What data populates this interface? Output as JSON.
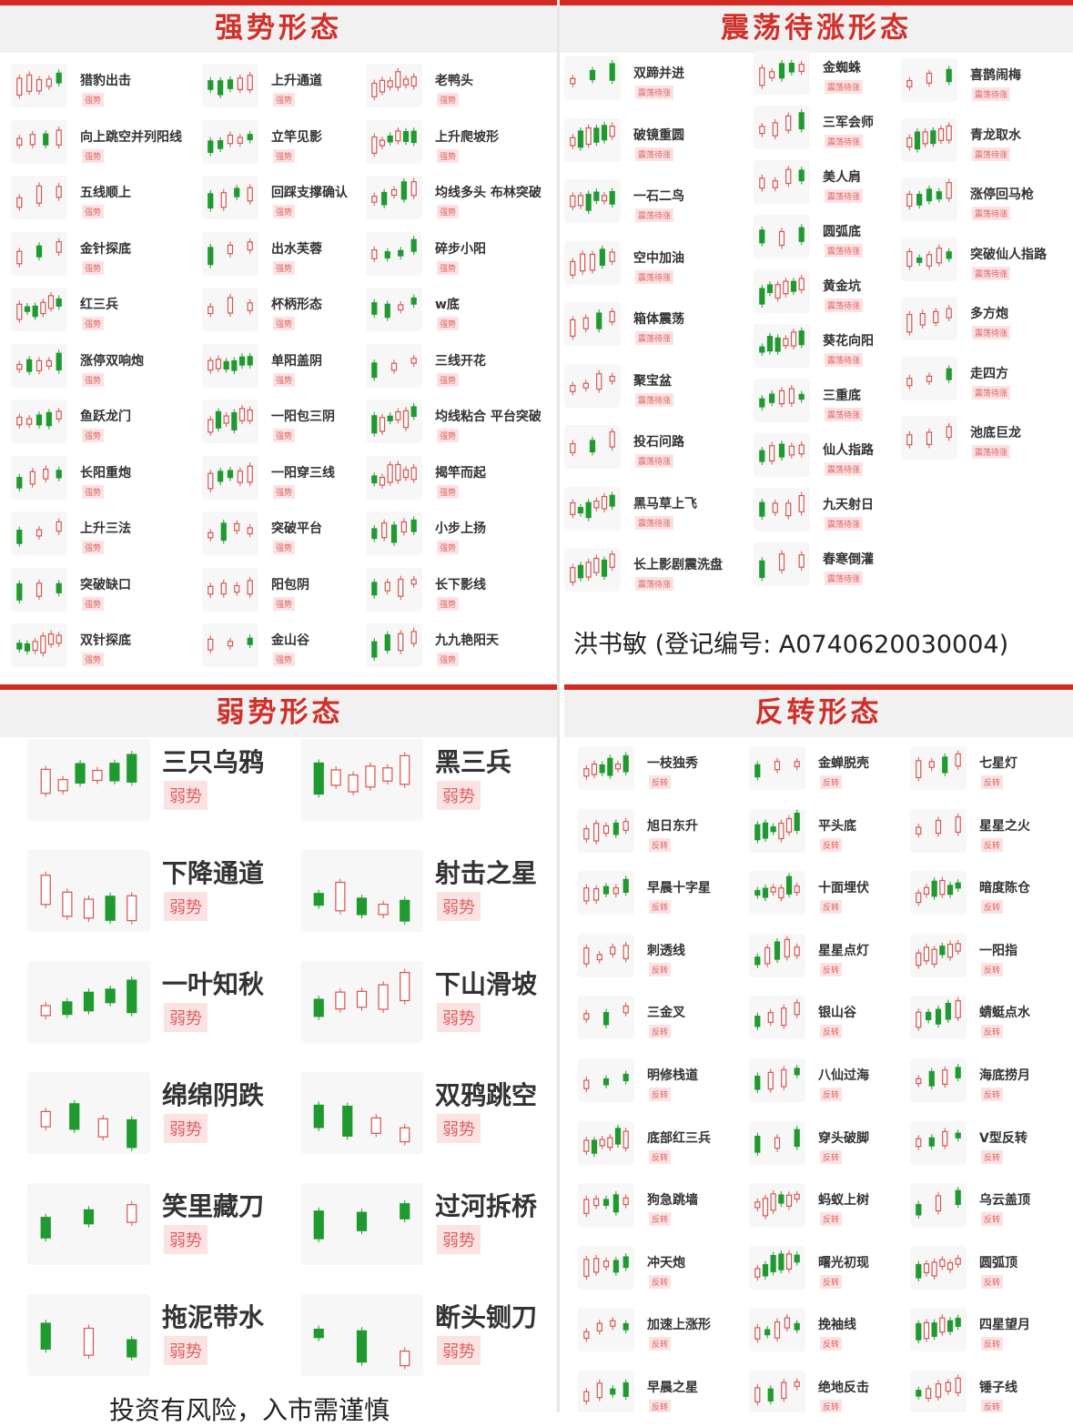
{
  "colors": {
    "accent": "#d42a24",
    "up": "#d9534f",
    "down": "#1e9a2e",
    "tag_bg": "#fbe3e3"
  },
  "strong": {
    "title": "强势形态",
    "tag": "强势",
    "columns": [
      [
        "猎豹出击",
        "向上跳空并列阳线",
        "五线顺上",
        "金针探底",
        "红三兵",
        "涨停双响炮",
        "鱼跃龙门",
        "长阳重炮",
        "上升三法",
        "突破缺口",
        "双针探底"
      ],
      [
        "上升通道",
        "立竿见影",
        "回踩支撑确认",
        "出水芙蓉",
        "杯柄形态",
        "单阳盖阴",
        "一阳包三阴",
        "一阳穿三线",
        "突破平台",
        "阳包阴",
        "金山谷"
      ],
      [
        "老鸭头",
        "上升爬坡形",
        "均线多头 布林突破",
        "碎步小阳",
        "w底",
        "三线开花",
        "均线粘合 平台突破",
        "揭竿而起",
        "小步上扬",
        "长下影线",
        "九九艳阳天"
      ]
    ]
  },
  "consolidation": {
    "title": "震荡待涨形态",
    "tag": "震荡待涨",
    "columns": [
      [
        "双蹄并进",
        "破镜重圆",
        "一石二鸟",
        "空中加油",
        "箱体震荡",
        "聚宝盆",
        "投石问路",
        "黑马草上飞",
        "长上影剧震洗盘"
      ],
      [
        "金蜘蛛",
        "三军会师",
        "美人肩",
        "圆弧底",
        "黄金坑",
        "葵花向阳",
        "三重底",
        "仙人指路",
        "九天射日",
        "春寒倒灌"
      ],
      [
        "喜鹊闹梅",
        "青龙取水",
        "涨停回马枪",
        "突破仙人指路",
        "多方炮",
        "走四方",
        "池底巨龙"
      ]
    ],
    "credit": "洪书敏 (登记编号: A0740620030004)"
  },
  "weak": {
    "title": "弱势形态",
    "tag": "弱势",
    "columns": [
      [
        "三只乌鸦",
        "下降通道",
        "一叶知秋",
        "绵绵阴跌",
        "笑里藏刀",
        "拖泥带水"
      ],
      [
        "黑三兵",
        "射击之星",
        "下山滑坡",
        "双鸦跳空",
        "过河拆桥",
        "断头铡刀"
      ]
    ],
    "footer": "投资有风险，入市需谨慎"
  },
  "reversal": {
    "title": "反转形态",
    "tag": "反转",
    "columns": [
      [
        "一枝独秀",
        "旭日东升",
        "早晨十字星",
        "刺透线",
        "三金叉",
        "明修栈道",
        "底部红三兵",
        "狗急跳墙",
        "冲天炮",
        "加速上涨形",
        "早晨之星"
      ],
      [
        "金蝉脱壳",
        "平头底",
        "十面埋伏",
        "星星点灯",
        "银山谷",
        "八仙过海",
        "穿头破脚",
        "蚂蚁上树",
        "曙光初现",
        "挽袖线",
        "绝地反击"
      ],
      [
        "七星灯",
        "星星之火",
        "暗度陈仓",
        "一阳指",
        "蜻蜓点水",
        "海底捞月",
        "V型反转",
        "乌云盖顶",
        "圆弧顶",
        "四星望月",
        "锤子线"
      ]
    ]
  }
}
